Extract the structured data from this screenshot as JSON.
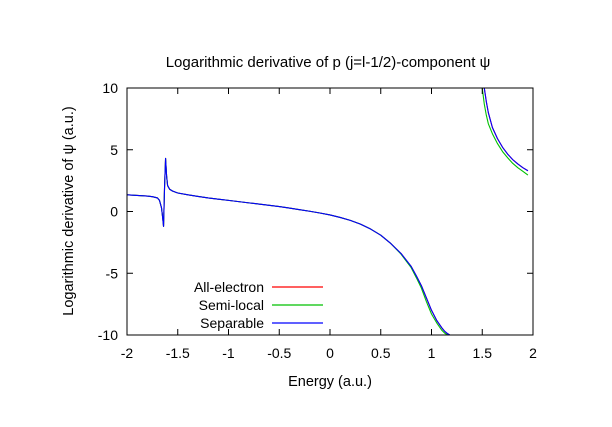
{
  "chart_data": {
    "type": "line",
    "title": "Logarithmic derivative of p (j=l-1/2)-component ψ",
    "xlabel": "Energy (a.u.)",
    "ylabel": "Logarithmic derivative of ψ (a.u.)",
    "xlim": [
      -2,
      2
    ],
    "ylim": [
      -10,
      10
    ],
    "xticks": [
      -2,
      -1.5,
      -1,
      -0.5,
      0,
      0.5,
      1,
      1.5,
      2
    ],
    "xtick_labels": [
      "-2",
      "-1.5",
      "-1",
      "-0.5",
      "0",
      "0.5",
      "1",
      "1.5",
      "2"
    ],
    "yticks": [
      -10,
      -5,
      0,
      5,
      10
    ],
    "ytick_labels": [
      "-10",
      "-5",
      "0",
      "5",
      "10"
    ],
    "grid": false,
    "legend_position": "bottom-left",
    "series": [
      {
        "name": "All-electron",
        "color": "#ff0000",
        "segments": [
          {
            "x": [
              -2.0,
              -1.9,
              -1.8,
              -1.75,
              -1.7,
              -1.68,
              -1.66,
              -1.65,
              -1.64,
              -1.63,
              -1.62,
              -1.61,
              -1.6,
              -1.58,
              -1.55,
              -1.5,
              -1.4,
              -1.3,
              -1.2,
              -1.1,
              -1.0,
              -0.9,
              -0.8,
              -0.7,
              -0.6,
              -0.5,
              -0.4,
              -0.3,
              -0.2,
              -0.1,
              0.0,
              0.1,
              0.2,
              0.3,
              0.4,
              0.5,
              0.6,
              0.7,
              0.8,
              0.85,
              0.9,
              0.95,
              1.0,
              1.05,
              1.1,
              1.13,
              1.16,
              1.18
            ],
            "y": [
              1.35,
              1.3,
              1.25,
              1.2,
              1.1,
              0.9,
              0.3,
              -0.4,
              -1.2,
              2.0,
              4.3,
              2.9,
              2.1,
              1.8,
              1.65,
              1.5,
              1.35,
              1.22,
              1.1,
              1.0,
              0.9,
              0.8,
              0.7,
              0.6,
              0.5,
              0.4,
              0.28,
              0.15,
              0.02,
              -0.12,
              -0.28,
              -0.48,
              -0.72,
              -1.02,
              -1.42,
              -1.92,
              -2.6,
              -3.4,
              -4.45,
              -5.2,
              -6.0,
              -7.0,
              -8.0,
              -8.8,
              -9.4,
              -9.7,
              -9.9,
              -10.0
            ]
          },
          {
            "x": [
              1.52,
              1.54,
              1.56,
              1.6,
              1.65,
              1.7,
              1.75,
              1.8,
              1.85,
              1.9,
              1.95
            ],
            "y": [
              10.0,
              8.9,
              8.0,
              6.8,
              5.9,
              5.2,
              4.65,
              4.2,
              3.85,
              3.55,
              3.3
            ]
          }
        ]
      },
      {
        "name": "Semi-local",
        "color": "#00c000",
        "segments": [
          {
            "x": [
              -2.0,
              -1.9,
              -1.8,
              -1.75,
              -1.7,
              -1.68,
              -1.66,
              -1.65,
              -1.64,
              -1.63,
              -1.62,
              -1.61,
              -1.6,
              -1.58,
              -1.55,
              -1.5,
              -1.4,
              -1.3,
              -1.2,
              -1.1,
              -1.0,
              -0.9,
              -0.8,
              -0.7,
              -0.6,
              -0.5,
              -0.4,
              -0.3,
              -0.2,
              -0.1,
              0.0,
              0.1,
              0.2,
              0.3,
              0.4,
              0.5,
              0.6,
              0.7,
              0.8,
              0.85,
              0.9,
              0.95,
              1.0,
              1.05,
              1.1,
              1.13,
              1.16,
              1.17
            ],
            "y": [
              1.35,
              1.3,
              1.25,
              1.2,
              1.1,
              0.9,
              0.3,
              -0.4,
              -1.2,
              2.0,
              4.3,
              2.9,
              2.1,
              1.8,
              1.65,
              1.5,
              1.35,
              1.22,
              1.1,
              1.0,
              0.9,
              0.8,
              0.7,
              0.6,
              0.5,
              0.4,
              0.28,
              0.15,
              0.02,
              -0.12,
              -0.28,
              -0.48,
              -0.72,
              -1.02,
              -1.42,
              -1.92,
              -2.6,
              -3.45,
              -4.55,
              -5.35,
              -6.2,
              -7.3,
              -8.3,
              -9.0,
              -9.6,
              -9.85,
              -10.0,
              -10.0
            ]
          },
          {
            "x": [
              1.5,
              1.52,
              1.54,
              1.56,
              1.6,
              1.65,
              1.7,
              1.75,
              1.8,
              1.85,
              1.9,
              1.95
            ],
            "y": [
              10.0,
              8.7,
              7.8,
              7.1,
              6.3,
              5.5,
              4.85,
              4.35,
              3.9,
              3.55,
              3.25,
              2.95
            ]
          }
        ]
      },
      {
        "name": "Separable",
        "color": "#0000ff",
        "segments": [
          {
            "x": [
              -2.0,
              -1.9,
              -1.8,
              -1.75,
              -1.7,
              -1.68,
              -1.66,
              -1.65,
              -1.64,
              -1.63,
              -1.62,
              -1.61,
              -1.6,
              -1.58,
              -1.55,
              -1.5,
              -1.4,
              -1.3,
              -1.2,
              -1.1,
              -1.0,
              -0.9,
              -0.8,
              -0.7,
              -0.6,
              -0.5,
              -0.4,
              -0.3,
              -0.2,
              -0.1,
              0.0,
              0.1,
              0.2,
              0.3,
              0.4,
              0.5,
              0.6,
              0.7,
              0.8,
              0.85,
              0.9,
              0.95,
              1.0,
              1.05,
              1.1,
              1.13,
              1.16,
              1.18
            ],
            "y": [
              1.35,
              1.3,
              1.25,
              1.2,
              1.1,
              0.9,
              0.3,
              -0.4,
              -1.2,
              2.0,
              4.3,
              2.9,
              2.1,
              1.8,
              1.65,
              1.5,
              1.35,
              1.22,
              1.1,
              1.0,
              0.9,
              0.8,
              0.7,
              0.6,
              0.5,
              0.4,
              0.28,
              0.15,
              0.02,
              -0.12,
              -0.28,
              -0.48,
              -0.72,
              -1.02,
              -1.42,
              -1.92,
              -2.6,
              -3.4,
              -4.45,
              -5.2,
              -6.0,
              -7.0,
              -8.0,
              -8.8,
              -9.4,
              -9.7,
              -9.9,
              -10.0
            ]
          },
          {
            "x": [
              1.52,
              1.54,
              1.56,
              1.6,
              1.65,
              1.7,
              1.75,
              1.8,
              1.85,
              1.9,
              1.95
            ],
            "y": [
              10.0,
              8.9,
              8.0,
              6.8,
              5.9,
              5.2,
              4.65,
              4.2,
              3.85,
              3.55,
              3.3
            ]
          }
        ]
      }
    ]
  }
}
